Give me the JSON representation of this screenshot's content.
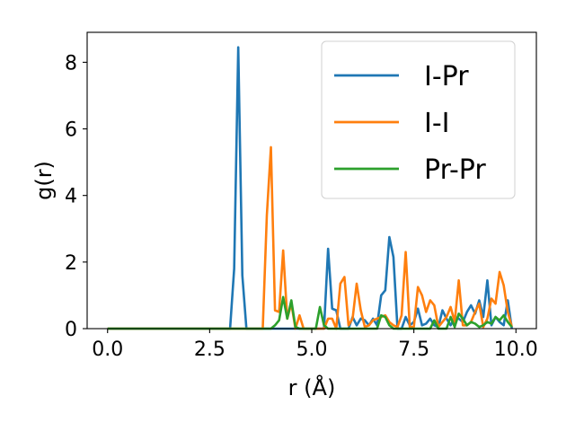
{
  "chart_data": {
    "type": "line",
    "xlabel": "r (Å)",
    "ylabel": "g(r)",
    "xlim": [
      -0.5,
      10.5
    ],
    "ylim": [
      0,
      8.9
    ],
    "xticks": [
      0.0,
      2.5,
      5.0,
      7.5,
      10.0
    ],
    "xtick_labels": [
      "0.0",
      "2.5",
      "5.0",
      "7.5",
      "10.0"
    ],
    "yticks": [
      0,
      2,
      4,
      6,
      8
    ],
    "ytick_labels": [
      "0",
      "2",
      "4",
      "6",
      "8"
    ],
    "grid": false,
    "legend_position": "top-right",
    "series": [
      {
        "name": "I-Pr",
        "color": "#1f77b4",
        "points": [
          [
            0.0,
            0
          ],
          [
            3.0,
            0
          ],
          [
            3.1,
            1.8
          ],
          [
            3.2,
            8.45
          ],
          [
            3.3,
            1.6
          ],
          [
            3.4,
            0
          ],
          [
            5.3,
            0
          ],
          [
            5.4,
            2.4
          ],
          [
            5.5,
            0.6
          ],
          [
            5.6,
            0.55
          ],
          [
            5.7,
            0
          ],
          [
            5.9,
            0
          ],
          [
            6.0,
            0.35
          ],
          [
            6.1,
            0.1
          ],
          [
            6.2,
            0.3
          ],
          [
            6.3,
            0.25
          ],
          [
            6.4,
            0.1
          ],
          [
            6.5,
            0.3
          ],
          [
            6.6,
            0.1
          ],
          [
            6.7,
            1.0
          ],
          [
            6.8,
            1.15
          ],
          [
            6.9,
            2.75
          ],
          [
            7.0,
            2.15
          ],
          [
            7.1,
            0
          ],
          [
            7.2,
            0
          ],
          [
            7.3,
            0.35
          ],
          [
            7.4,
            0.1
          ],
          [
            7.5,
            0.2
          ],
          [
            7.6,
            0.6
          ],
          [
            7.7,
            0.1
          ],
          [
            7.8,
            0.15
          ],
          [
            7.9,
            0.3
          ],
          [
            8.0,
            0.1
          ],
          [
            8.1,
            0.05
          ],
          [
            8.2,
            0.55
          ],
          [
            8.3,
            0.3
          ],
          [
            8.4,
            0.1
          ],
          [
            8.5,
            0.35
          ],
          [
            8.6,
            0.3
          ],
          [
            8.7,
            0.2
          ],
          [
            8.8,
            0.5
          ],
          [
            8.9,
            0.7
          ],
          [
            9.0,
            0.45
          ],
          [
            9.1,
            0.85
          ],
          [
            9.2,
            0.35
          ],
          [
            9.3,
            1.45
          ],
          [
            9.4,
            0.1
          ],
          [
            9.5,
            0.35
          ],
          [
            9.6,
            0.2
          ],
          [
            9.7,
            0.1
          ],
          [
            9.8,
            0.85
          ],
          [
            9.9,
            0
          ]
        ]
      },
      {
        "name": "I-I",
        "color": "#ff7f0e",
        "points": [
          [
            0.0,
            0
          ],
          [
            3.8,
            0
          ],
          [
            3.9,
            3.4
          ],
          [
            4.0,
            5.45
          ],
          [
            4.1,
            0.55
          ],
          [
            4.2,
            0.5
          ],
          [
            4.3,
            2.35
          ],
          [
            4.4,
            0.3
          ],
          [
            4.5,
            0.75
          ],
          [
            4.6,
            0
          ],
          [
            4.7,
            0.4
          ],
          [
            4.8,
            0
          ],
          [
            5.3,
            0
          ],
          [
            5.4,
            0.3
          ],
          [
            5.5,
            0.3
          ],
          [
            5.6,
            0
          ],
          [
            5.7,
            1.35
          ],
          [
            5.8,
            1.55
          ],
          [
            5.9,
            0.1
          ],
          [
            6.0,
            0.3
          ],
          [
            6.1,
            1.35
          ],
          [
            6.2,
            0.55
          ],
          [
            6.3,
            0.05
          ],
          [
            6.4,
            0.1
          ],
          [
            6.5,
            0.25
          ],
          [
            6.6,
            0.3
          ],
          [
            6.7,
            0.35
          ],
          [
            6.8,
            0.4
          ],
          [
            6.9,
            0.2
          ],
          [
            7.0,
            0.1
          ],
          [
            7.1,
            0.05
          ],
          [
            7.2,
            0.4
          ],
          [
            7.3,
            2.3
          ],
          [
            7.4,
            0.05
          ],
          [
            7.5,
            0.05
          ],
          [
            7.6,
            1.25
          ],
          [
            7.7,
            1.0
          ],
          [
            7.8,
            0.5
          ],
          [
            7.9,
            0.85
          ],
          [
            8.0,
            0.7
          ],
          [
            8.1,
            0.05
          ],
          [
            8.2,
            0.2
          ],
          [
            8.3,
            0.35
          ],
          [
            8.4,
            0.65
          ],
          [
            8.5,
            0.2
          ],
          [
            8.6,
            1.45
          ],
          [
            8.7,
            0.1
          ],
          [
            8.8,
            0.1
          ],
          [
            8.9,
            0.2
          ],
          [
            9.0,
            0.5
          ],
          [
            9.1,
            0.75
          ],
          [
            9.2,
            0.05
          ],
          [
            9.3,
            0.3
          ],
          [
            9.4,
            0.9
          ],
          [
            9.5,
            0.75
          ],
          [
            9.6,
            1.7
          ],
          [
            9.7,
            1.3
          ],
          [
            9.8,
            0.5
          ],
          [
            9.9,
            0.05
          ]
        ]
      },
      {
        "name": "Pr-Pr",
        "color": "#2ca02c",
        "points": [
          [
            0.0,
            0
          ],
          [
            4.0,
            0
          ],
          [
            4.1,
            0.1
          ],
          [
            4.2,
            0.25
          ],
          [
            4.3,
            0.95
          ],
          [
            4.4,
            0.3
          ],
          [
            4.5,
            0.85
          ],
          [
            4.6,
            0.05
          ],
          [
            4.7,
            0
          ],
          [
            5.1,
            0
          ],
          [
            5.2,
            0.65
          ],
          [
            5.3,
            0.1
          ],
          [
            5.4,
            0
          ],
          [
            6.6,
            0
          ],
          [
            6.7,
            0.4
          ],
          [
            6.8,
            0.35
          ],
          [
            6.9,
            0.1
          ],
          [
            7.0,
            0
          ],
          [
            7.9,
            0
          ],
          [
            8.0,
            0.25
          ],
          [
            8.1,
            0
          ],
          [
            8.3,
            0
          ],
          [
            8.4,
            0.35
          ],
          [
            8.5,
            0.05
          ],
          [
            8.6,
            0.45
          ],
          [
            8.7,
            0.3
          ],
          [
            8.8,
            0.1
          ],
          [
            8.9,
            0.2
          ],
          [
            9.0,
            0.15
          ],
          [
            9.1,
            0.05
          ],
          [
            9.2,
            0.1
          ],
          [
            9.3,
            0.2
          ],
          [
            9.4,
            0.15
          ],
          [
            9.5,
            0.35
          ],
          [
            9.6,
            0.25
          ],
          [
            9.7,
            0.4
          ],
          [
            9.8,
            0.2
          ],
          [
            9.9,
            0.05
          ]
        ]
      }
    ]
  }
}
